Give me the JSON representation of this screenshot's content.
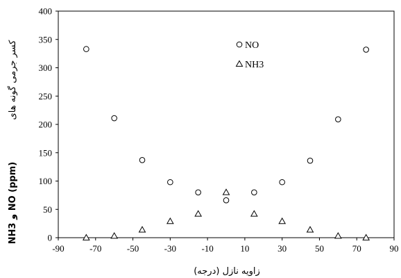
{
  "chart_data": {
    "type": "scatter",
    "title": "",
    "xlabel": "زاویه نازل (درجه)",
    "ylabel_rtl": "کسر جرمی گونه های",
    "ylabel_ltr": "NH3 و NO (ppm)",
    "xlim": [
      -90,
      90
    ],
    "ylim": [
      0,
      400
    ],
    "xticks": [
      "-90",
      "-70",
      "-50",
      "-30",
      "-10",
      "10",
      "30",
      "50",
      "70",
      "90"
    ],
    "yticks": [
      "0",
      "50",
      "100",
      "150",
      "200",
      "250",
      "300",
      "350",
      "400"
    ],
    "legend_position": "top-center",
    "series": [
      {
        "name": "NO",
        "marker": "circle",
        "x": [
          -75,
          -60,
          -45,
          -30,
          -15,
          0,
          15,
          30,
          45,
          60,
          75
        ],
        "y": [
          333,
          211,
          137,
          98,
          80,
          66,
          80,
          98,
          136,
          209,
          332
        ]
      },
      {
        "name": "NH3",
        "marker": "triangle",
        "x": [
          -75,
          -60,
          -45,
          -30,
          -15,
          0,
          15,
          30,
          45,
          60,
          75
        ],
        "y": [
          0,
          3,
          14,
          29,
          42,
          80,
          42,
          29,
          14,
          3,
          0
        ]
      }
    ]
  }
}
